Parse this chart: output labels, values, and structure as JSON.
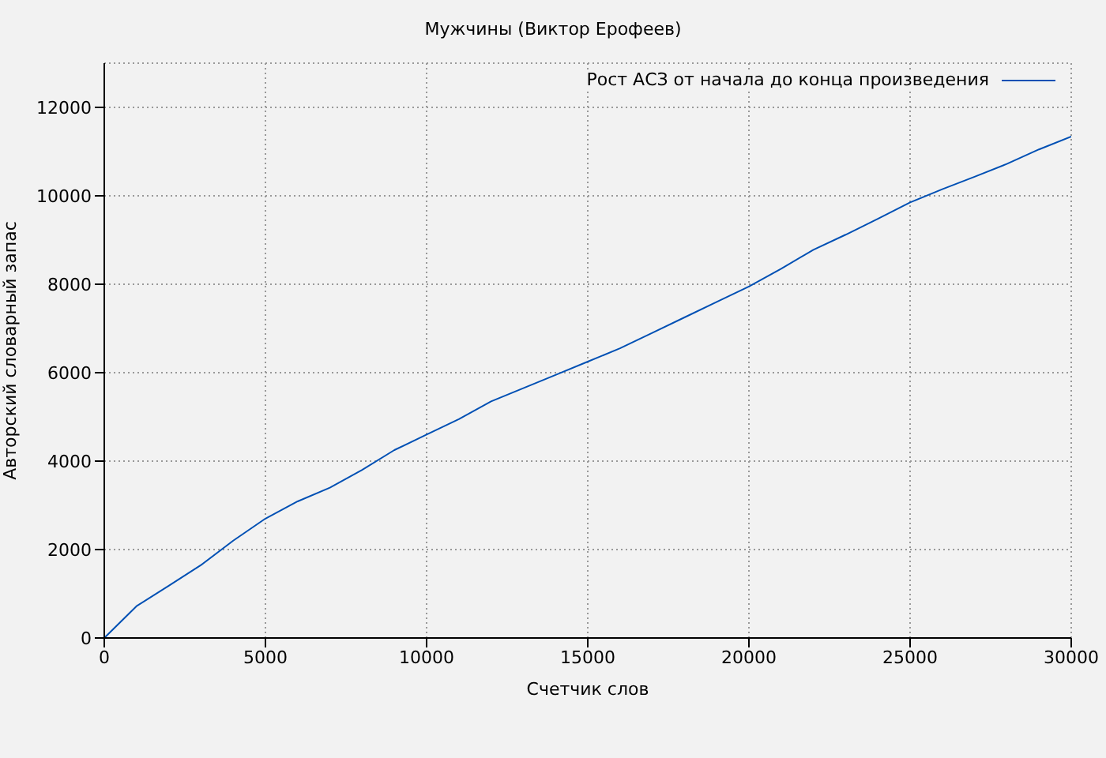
{
  "chart_data": {
    "type": "line",
    "title": "Мужчины (Виктор Ерофеев)",
    "xlabel": "Счетчик слов",
    "ylabel": "Авторский словарный запас",
    "x": [
      0,
      1000,
      2000,
      3000,
      4000,
      5000,
      6000,
      7000,
      8000,
      9000,
      10000,
      11000,
      12000,
      13000,
      14000,
      15000,
      16000,
      17000,
      18000,
      19000,
      20000,
      21000,
      22000,
      23000,
      24000,
      25000,
      26000,
      27000,
      28000,
      29000,
      30000
    ],
    "series": [
      {
        "name": "Рост АСЗ от начала до конца произведения",
        "color": "#0050b4",
        "values": [
          0,
          720,
          1180,
          1650,
          2200,
          2700,
          3090,
          3400,
          3800,
          4250,
          4600,
          4950,
          5350,
          5650,
          5950,
          6250,
          6550,
          6900,
          7250,
          7600,
          7950,
          8350,
          8780,
          9120,
          9480,
          9850,
          10150,
          10430,
          10720,
          11050,
          11340
        ]
      }
    ],
    "xlim": [
      0,
      30000
    ],
    "xticks": [
      0,
      5000,
      10000,
      15000,
      20000,
      25000,
      30000
    ],
    "ylim": [
      0,
      13000
    ],
    "yticks": [
      0,
      2000,
      4000,
      6000,
      8000,
      10000,
      12000
    ],
    "grid": true,
    "legend": "top right",
    "marker": "none",
    "line_style": "solid"
  }
}
